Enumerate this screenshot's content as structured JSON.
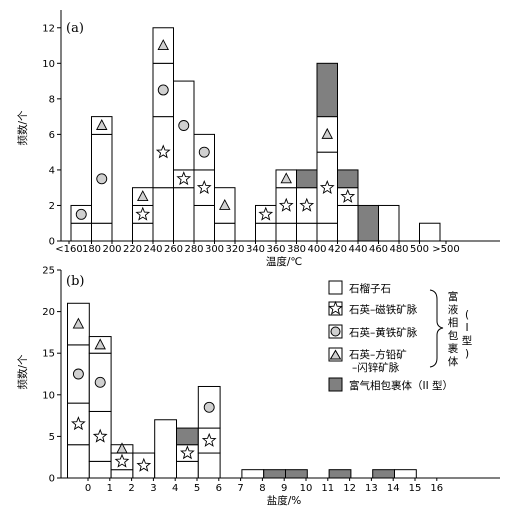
{
  "chart_data": [
    {
      "type": "bar",
      "panel_label": "(a)",
      "xlabel": "温度/℃",
      "ylabel": "频数/个",
      "ylim": [
        0,
        13
      ],
      "yticks": [
        0,
        2,
        4,
        6,
        8,
        10,
        12
      ],
      "xtick_labels": [
        "<160",
        "180",
        "200",
        "220",
        "240",
        "260",
        "280",
        "300",
        "320",
        "340",
        "360",
        "380",
        "400",
        "420",
        "440",
        "460",
        "480",
        "500",
        ">500"
      ],
      "bin_width": 20,
      "first_edge": 160,
      "series": [
        {
          "name": "石榴子石",
          "values": [
            {
              "x": 160,
              "count": 1
            },
            {
              "x": 180,
              "count": 1
            },
            {
              "x": 220,
              "count": 1
            },
            {
              "x": 240,
              "count": 3
            },
            {
              "x": 260,
              "count": 3
            },
            {
              "x": 280,
              "count": 2
            },
            {
              "x": 300,
              "count": 1
            },
            {
              "x": 340,
              "count": 1
            },
            {
              "x": 360,
              "count": 1
            },
            {
              "x": 380,
              "count": 1
            },
            {
              "x": 400,
              "count": 1
            },
            {
              "x": 420,
              "count": 2
            },
            {
              "x": 460,
              "count": 2
            },
            {
              "x": 500,
              "count": 1
            }
          ]
        },
        {
          "name": "石英–磁铁矿脉",
          "values": [
            {
              "x": 220,
              "count": 1
            },
            {
              "x": 240,
              "count": 4
            },
            {
              "x": 260,
              "count": 1
            },
            {
              "x": 280,
              "count": 2
            },
            {
              "x": 340,
              "count": 1
            },
            {
              "x": 360,
              "count": 2
            },
            {
              "x": 380,
              "count": 2
            },
            {
              "x": 400,
              "count": 4
            },
            {
              "x": 420,
              "count": 1
            }
          ]
        },
        {
          "name": "石英–黄铁矿脉",
          "values": [
            {
              "x": 160,
              "count": 1
            },
            {
              "x": 180,
              "count": 5
            },
            {
              "x": 240,
              "count": 3
            },
            {
              "x": 260,
              "count": 5
            },
            {
              "x": 280,
              "count": 2
            }
          ]
        },
        {
          "name": "石英–方铅矿–闪锌矿脉",
          "values": [
            {
              "x": 180,
              "count": 1
            },
            {
              "x": 220,
              "count": 1
            },
            {
              "x": 240,
              "count": 2
            },
            {
              "x": 300,
              "count": 2
            },
            {
              "x": 360,
              "count": 1
            },
            {
              "x": 400,
              "count": 2
            }
          ]
        },
        {
          "name": "富气相包裹体（II型）",
          "values": [
            {
              "x": 380,
              "count": 1
            },
            {
              "x": 400,
              "count": 3
            },
            {
              "x": 420,
              "count": 1
            },
            {
              "x": 440,
              "count": 2
            }
          ]
        }
      ]
    },
    {
      "type": "bar",
      "panel_label": "(b)",
      "xlabel": "盐度/%",
      "ylabel": "频数/个",
      "ylim": [
        0,
        25
      ],
      "yticks": [
        0,
        5,
        10,
        15,
        20,
        25
      ],
      "xtick_labels": [
        "0",
        "1",
        "2",
        "3",
        "4",
        "5",
        "6",
        "7",
        "8",
        "9",
        "10",
        "11",
        "12",
        "13",
        "14",
        "15",
        "16"
      ],
      "bin_width": 1,
      "first_edge": 0,
      "series": [
        {
          "name": "石榴子石",
          "values": [
            {
              "x": 0,
              "count": 4
            },
            {
              "x": 1,
              "count": 2
            },
            {
              "x": 2,
              "count": 1
            },
            {
              "x": 4,
              "count": 7
            },
            {
              "x": 5,
              "count": 2
            },
            {
              "x": 6,
              "count": 3
            },
            {
              "x": 8,
              "count": 1
            },
            {
              "x": 15,
              "count": 1
            }
          ]
        },
        {
          "name": "石英–磁铁矿脉",
          "values": [
            {
              "x": 0,
              "count": 5
            },
            {
              "x": 1,
              "count": 6
            },
            {
              "x": 2,
              "count": 2
            },
            {
              "x": 3,
              "count": 3
            },
            {
              "x": 5,
              "count": 2
            },
            {
              "x": 6,
              "count": 3
            }
          ]
        },
        {
          "name": "石英–黄铁矿脉",
          "values": [
            {
              "x": 0,
              "count": 7
            },
            {
              "x": 1,
              "count": 7
            },
            {
              "x": 6,
              "count": 5
            }
          ]
        },
        {
          "name": "石英–方铅矿–闪锌矿脉",
          "values": [
            {
              "x": 0,
              "count": 5
            },
            {
              "x": 1,
              "count": 2
            },
            {
              "x": 2,
              "count": 1
            }
          ]
        },
        {
          "name": "富气相包裹体（II型）",
          "values": [
            {
              "x": 5,
              "count": 2
            },
            {
              "x": 9,
              "count": 1
            },
            {
              "x": 10,
              "count": 1
            },
            {
              "x": 12,
              "count": 1
            },
            {
              "x": 14,
              "count": 1
            }
          ]
        }
      ]
    }
  ],
  "legend": {
    "items": [
      {
        "label": "石榴子石",
        "icon": "square-icon"
      },
      {
        "label": "石英–磁铁矿脉",
        "icon": "star-icon"
      },
      {
        "label": "石英–黄铁矿脉",
        "icon": "circle-icon"
      },
      {
        "label": "石英–方铅矿",
        "label2": "–闪锌矿脉",
        "icon": "triangle-icon"
      },
      {
        "label": "富气相包裹体（II 型）",
        "icon": "filled-square-icon"
      }
    ],
    "brace_label_chars": [
      "富",
      "液",
      "相",
      "包",
      "裹",
      "体"
    ],
    "brace_type_chars": [
      "(",
      "I",
      "型",
      ")"
    ]
  },
  "colors": {
    "gas_fill": "#808080",
    "marker_fill": "#d0d0d0",
    "box_fill": "#ffffff"
  },
  "marker_map": {
    "石英–磁铁矿脉": "star",
    "石英–黄铁矿脉": "circle",
    "石英–方铅矿–闪锌矿脉": "triangle"
  }
}
